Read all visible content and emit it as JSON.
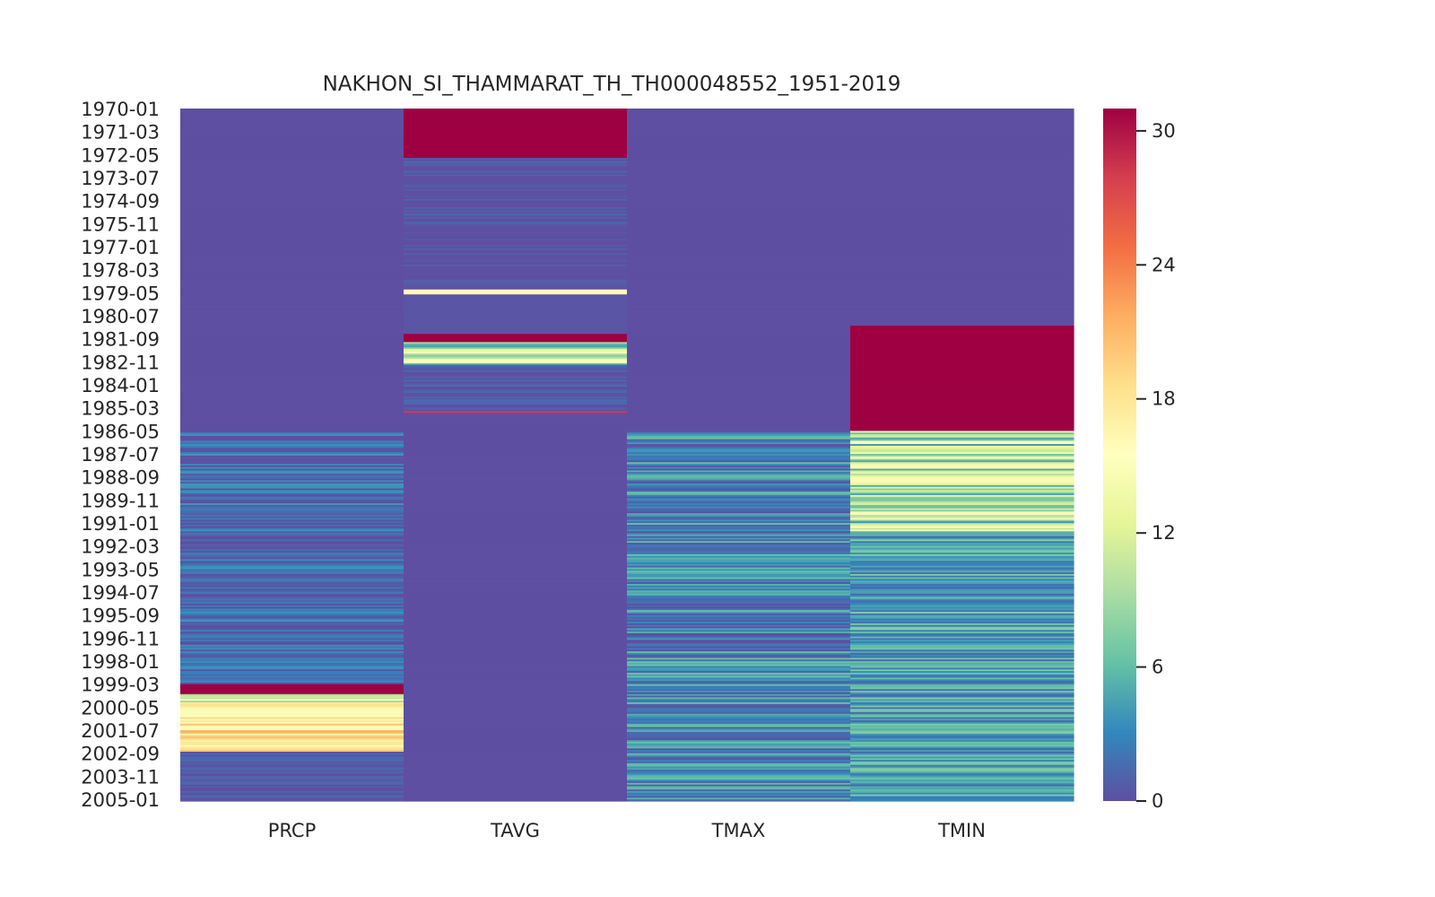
{
  "chart_data": {
    "type": "heatmap",
    "title": "NAKHON_SI_THAMMARAT_TH_TH000048552_1951-2019",
    "xlabel": "",
    "ylabel": "",
    "columns": [
      "PRCP",
      "TAVG",
      "TMAX",
      "TMIN"
    ],
    "y_start": "1970-01",
    "y_end": "2005-01",
    "y_tick_labels": [
      "1970-01",
      "1971-03",
      "1972-05",
      "1973-07",
      "1974-09",
      "1975-11",
      "1977-01",
      "1978-03",
      "1979-05",
      "1980-07",
      "1981-09",
      "1982-11",
      "1984-01",
      "1985-03",
      "1986-05",
      "1987-07",
      "1988-09",
      "1989-11",
      "1991-01",
      "1992-03",
      "1993-05",
      "1994-07",
      "1995-09",
      "1996-11",
      "1998-01",
      "1999-03",
      "2000-05",
      "2001-07",
      "2002-09",
      "2003-11",
      "2005-01"
    ],
    "colorbar": {
      "min": 0,
      "max": 31,
      "ticks": [
        0,
        6,
        12,
        18,
        24,
        30
      ],
      "colormap": "Spectral_r"
    },
    "segments": {
      "PRCP": [
        {
          "from": "1970-01",
          "to": "1986-04",
          "value": 0
        },
        {
          "from": "1986-05",
          "to": "1999-02",
          "value": 1.5,
          "variation": 2.5
        },
        {
          "from": "1999-03",
          "to": "1999-08",
          "value": 31
        },
        {
          "from": "1999-09",
          "to": "2000-02",
          "value": 13,
          "variation": 5
        },
        {
          "from": "2000-03",
          "to": "2002-07",
          "value": 17.5,
          "variation": 4
        },
        {
          "from": "2002-08",
          "to": "2005-01",
          "value": 0.6,
          "variation": 1.2
        }
      ],
      "TAVG": [
        {
          "from": "1970-01",
          "to": "1972-06",
          "value": 31
        },
        {
          "from": "1972-07",
          "to": "1979-02",
          "value": 0,
          "variation": 1.5
        },
        {
          "from": "1979-03",
          "to": "1979-05",
          "value": 16
        },
        {
          "from": "1979-06",
          "to": "1981-05",
          "value": 0.3
        },
        {
          "from": "1981-06",
          "to": "1981-10",
          "value": 31
        },
        {
          "from": "1981-11",
          "to": "1982-12",
          "value": 10,
          "variation": 6
        },
        {
          "from": "1983-01",
          "to": "1985-04",
          "value": 0.3,
          "variation": 1.5
        },
        {
          "from": "1985-05",
          "to": "1985-05",
          "value": 28
        },
        {
          "from": "1985-06",
          "to": "2005-01",
          "value": 0
        }
      ],
      "TMAX": [
        {
          "from": "1970-01",
          "to": "1986-04",
          "value": 0
        },
        {
          "from": "1986-05",
          "to": "2005-01",
          "value": 3,
          "variation": 3.5
        }
      ],
      "TMIN": [
        {
          "from": "1970-01",
          "to": "1980-12",
          "value": 0
        },
        {
          "from": "1981-01",
          "to": "1986-04",
          "value": 31
        },
        {
          "from": "1986-05",
          "to": "1991-06",
          "value": 9.5,
          "variation": 6
        },
        {
          "from": "1991-07",
          "to": "2005-01",
          "value": 4.5,
          "variation": 3.5
        }
      ]
    }
  }
}
